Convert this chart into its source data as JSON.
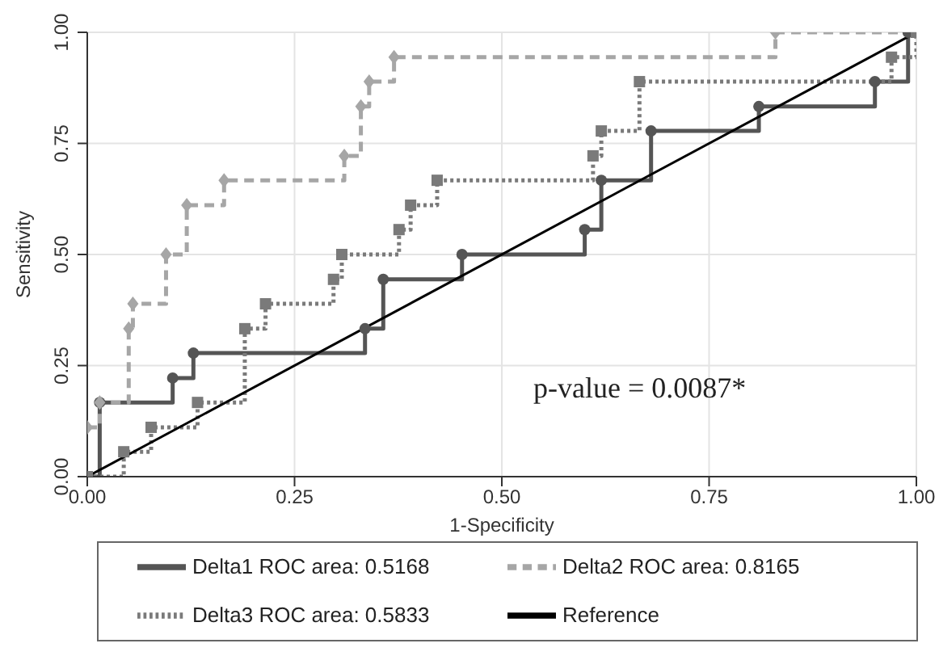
{
  "chart_data": {
    "type": "step",
    "xlabel": "1-Specificity",
    "ylabel": "Sensitivity",
    "xlim": [
      0,
      1
    ],
    "ylim": [
      0,
      1
    ],
    "xticks": [
      {
        "value": 0,
        "label": "0.00"
      },
      {
        "value": 0.25,
        "label": "0.25"
      },
      {
        "value": 0.5,
        "label": "0.50"
      },
      {
        "value": 0.75,
        "label": "0.75"
      },
      {
        "value": 1,
        "label": "1.00"
      }
    ],
    "yticks": [
      {
        "value": 0,
        "label": "0.00"
      },
      {
        "value": 0.25,
        "label": "0.25"
      },
      {
        "value": 0.5,
        "label": "0.50"
      },
      {
        "value": 0.75,
        "label": "0.75"
      },
      {
        "value": 1,
        "label": "1.00"
      }
    ],
    "grid": true,
    "legend": "bottom",
    "annotations": [
      "p-value = 0.0087*"
    ],
    "series": [
      {
        "name": "Delta1 ROC area: 0.5168",
        "color": "#555555",
        "marker": "circle",
        "line_style": "solid",
        "x": [
          0,
          0.015,
          0.103,
          0.128,
          0.335,
          0.357,
          0.452,
          0.6,
          0.62,
          0.68,
          0.81,
          0.95,
          0.99,
          1
        ],
        "values": [
          0,
          0.167,
          0.222,
          0.278,
          0.333,
          0.444,
          0.5,
          0.556,
          0.667,
          0.778,
          0.833,
          0.889,
          1,
          1
        ]
      },
      {
        "name": "Delta2 ROC area: 0.8165",
        "color": "#a6a6a6",
        "marker": "diamond",
        "line_style": "dashed",
        "x": [
          0,
          0.015,
          0.05,
          0.055,
          0.095,
          0.12,
          0.165,
          0.31,
          0.33,
          0.34,
          0.37,
          0.83,
          1
        ],
        "values": [
          0.111,
          0.167,
          0.333,
          0.389,
          0.5,
          0.611,
          0.667,
          0.722,
          0.833,
          0.889,
          0.944,
          1,
          1
        ]
      },
      {
        "name": "Delta3 ROC area: 0.5833",
        "color": "#7a7a7a",
        "marker": "square",
        "line_style": "dotted",
        "x": [
          0,
          0.044,
          0.077,
          0.133,
          0.19,
          0.215,
          0.297,
          0.307,
          0.376,
          0.39,
          0.422,
          0.61,
          0.62,
          0.666,
          0.97,
          1
        ],
        "values": [
          0,
          0.056,
          0.111,
          0.167,
          0.333,
          0.389,
          0.444,
          0.5,
          0.556,
          0.611,
          0.667,
          0.722,
          0.778,
          0.889,
          0.944,
          1
        ]
      },
      {
        "name": "Reference",
        "type": "line",
        "color": "#000000",
        "marker": "none",
        "line_style": "solid",
        "x": [
          0,
          1
        ],
        "values": [
          0,
          1
        ]
      }
    ]
  }
}
